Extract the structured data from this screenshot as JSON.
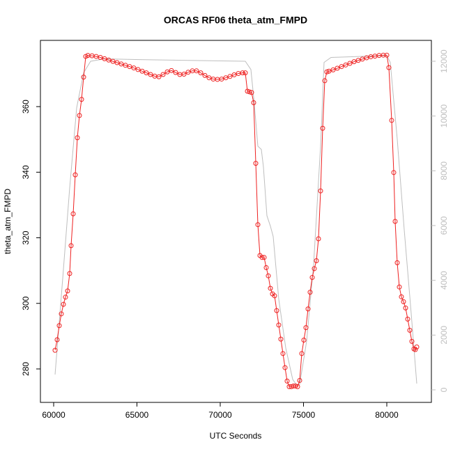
{
  "chart_data": {
    "type": "line",
    "title": "ORCAS RF06 theta_atm_FMPD",
    "x_label": "UTC Seconds",
    "y_label": "theta_atm_FMPD",
    "xlim": [
      59205,
      82678
    ],
    "xticks": [
      60000,
      65000,
      70000,
      75000,
      80000
    ],
    "ylim": [
      269.8,
      380.2
    ],
    "yticks": [
      280,
      300,
      320,
      340,
      360
    ],
    "y2lim": [
      -458,
      12763
    ],
    "y2ticks": [
      0,
      2000,
      4000,
      6000,
      8000,
      10000,
      12000
    ],
    "series": [
      {
        "color": "#ee2020",
        "markers": true,
        "axis": "y",
        "x": [
          60084,
          60209,
          60335,
          60460,
          60586,
          60711,
          60837,
          60962,
          61046,
          61172,
          61297,
          61423,
          61548,
          61674,
          61799,
          61925,
          62050,
          62301,
          62552,
          62803,
          63054,
          63305,
          63556,
          63807,
          64058,
          64310,
          64561,
          64812,
          65063,
          65314,
          65565,
          65816,
          66067,
          66318,
          66569,
          66820,
          67071,
          67322,
          67573,
          67824,
          68075,
          68326,
          68577,
          68828,
          69079,
          69330,
          69581,
          69832,
          70083,
          70334,
          70585,
          70836,
          71088,
          71339,
          71506,
          71632,
          71757,
          71883,
          72008,
          72134,
          72259,
          72385,
          72510,
          72636,
          72761,
          72887,
          73012,
          73138,
          73263,
          73389,
          73514,
          73640,
          73765,
          73891,
          74016,
          74142,
          74267,
          74393,
          74518,
          74644,
          74770,
          74895,
          75021,
          75146,
          75272,
          75397,
          75523,
          75648,
          75774,
          75899,
          76025,
          76150,
          76276,
          76401,
          76527,
          76778,
          77029,
          77280,
          77531,
          77782,
          78033,
          78284,
          78535,
          78786,
          79037,
          79288,
          79539,
          79791,
          80000,
          80125,
          80293,
          80418,
          80502,
          80627,
          80753,
          80878,
          81004,
          81129,
          81255,
          81380,
          81506,
          81631,
          81715,
          81799
        ],
        "values": [
          285.7,
          288.9,
          293.2,
          296.8,
          299.7,
          301.9,
          303.8,
          309.1,
          317.6,
          327.3,
          339.2,
          350.5,
          357.3,
          362.2,
          369.0,
          375.3,
          375.6,
          375.5,
          375.3,
          375.0,
          374.6,
          374.2,
          373.8,
          373.4,
          373.0,
          372.6,
          372.2,
          371.8,
          371.3,
          370.8,
          370.3,
          369.8,
          369.3,
          369.1,
          369.8,
          370.6,
          371.0,
          370.4,
          369.8,
          369.9,
          370.5,
          370.9,
          370.9,
          370.3,
          369.5,
          368.8,
          368.4,
          368.3,
          368.4,
          368.8,
          369.2,
          369.7,
          370.1,
          370.3,
          370.3,
          364.7,
          364.5,
          364.3,
          361.2,
          342.7,
          324.0,
          314.6,
          314.0,
          314.0,
          310.9,
          308.4,
          304.6,
          302.9,
          302.3,
          297.8,
          293.4,
          289.1,
          284.7,
          280.4,
          276.3,
          274.6,
          274.6,
          274.8,
          274.8,
          274.6,
          276.5,
          284.7,
          288.8,
          292.6,
          298.3,
          303.4,
          307.9,
          310.6,
          313.0,
          319.7,
          334.3,
          353.4,
          367.9,
          370.6,
          370.8,
          371.2,
          371.7,
          372.2,
          372.7,
          373.2,
          373.7,
          374.1,
          374.5,
          374.9,
          375.2,
          375.4,
          375.6,
          375.7,
          375.7,
          371.9,
          355.8,
          339.9,
          325.0,
          312.4,
          305.0,
          302.0,
          300.5,
          298.6,
          295.2,
          291.8,
          288.4,
          286.1,
          285.9,
          286.7
        ]
      },
      {
        "color": "#bebebe",
        "markers": false,
        "axis": "y2",
        "x": [
          60084,
          60544,
          60962,
          61381,
          61799,
          62218,
          63054,
          65146,
          71506,
          71841,
          72050,
          72259,
          72468,
          72594,
          72803,
          73012,
          73180,
          73514,
          73933,
          74351,
          74560,
          74770,
          75188,
          75607,
          76025,
          76234,
          76653,
          80000,
          80209,
          80627,
          81046,
          81464,
          81799
        ],
        "values": [
          560,
          4070,
          7380,
          10300,
          11580,
          12000,
          12090,
          12060,
          12000,
          11700,
          10430,
          8900,
          8780,
          8140,
          6360,
          5980,
          5600,
          3310,
          1530,
          380,
          200,
          200,
          1780,
          4580,
          8900,
          11960,
          12140,
          12210,
          11960,
          9160,
          5850,
          2800,
          230
        ]
      }
    ]
  }
}
